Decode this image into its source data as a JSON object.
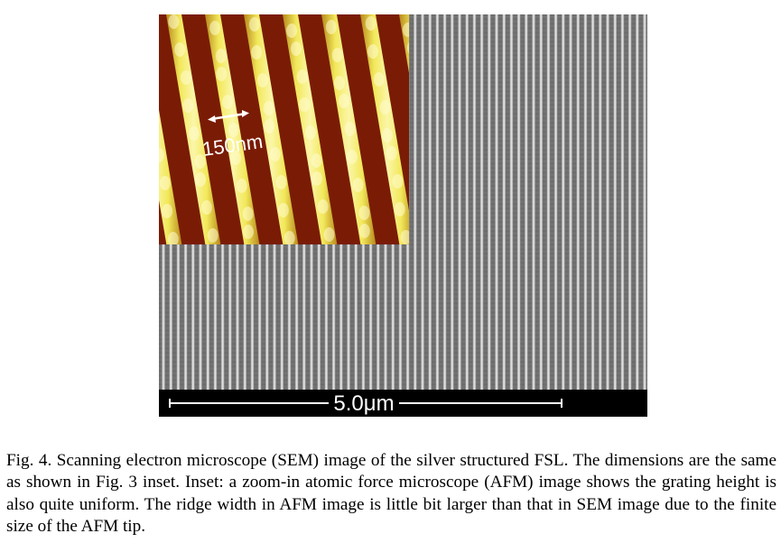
{
  "figure": {
    "scale_bar_label": "5.0μm",
    "inset_scale_label": "150nm",
    "colors": {
      "sem_background": "#6f6f6f",
      "sem_ridge": "#e6e6e6",
      "afm_groove": "#7a1c05",
      "afm_ridge": "#f2e85a",
      "scale_strip": "#000000"
    }
  },
  "caption": {
    "text": "Fig. 4. Scanning electron microscope (SEM) image of the silver structured FSL. The dimensions are the same as shown in Fig. 3 inset. Inset: a zoom-in atomic force microscope (AFM) image shows the grating height is also quite uniform. The ridge width in AFM image is little bit larger than that in SEM image due to the finite size of the AFM tip."
  }
}
